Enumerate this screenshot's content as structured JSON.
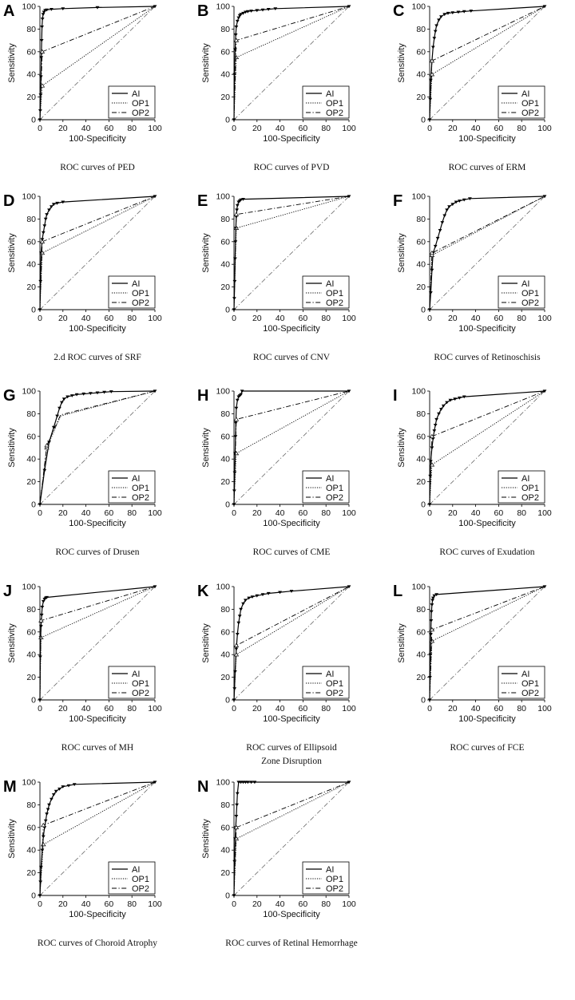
{
  "figure": {
    "x_axis_label": "100-Specificity",
    "y_axis_label": "Sensitivity",
    "tick_labels": [
      "0",
      "20",
      "40",
      "60",
      "80",
      "100"
    ],
    "legend_entries": [
      "AI",
      "OP1",
      "OP2"
    ]
  },
  "chart_data": [
    {
      "type": "line",
      "panel": "A",
      "caption": [
        "ROC curves of PED"
      ],
      "xlabel": "100-Specificity",
      "ylabel": "Sensitivity",
      "xlim": [
        0,
        100
      ],
      "ylim": [
        0,
        100
      ],
      "series": [
        {
          "name": "AI",
          "x": [
            0,
            0.3,
            0.6,
            0.9,
            1.2,
            1.5,
            1.8,
            2.2,
            2.8,
            3.5,
            4.5,
            6,
            10,
            20,
            50,
            100
          ],
          "y": [
            0,
            8,
            22,
            38,
            55,
            70,
            82,
            89,
            93,
            95,
            96.5,
            97,
            97.5,
            98,
            99,
            100
          ]
        },
        {
          "name": "OP1",
          "x": [
            0,
            2,
            100
          ],
          "y": [
            0,
            30,
            100
          ]
        },
        {
          "name": "OP2",
          "x": [
            0,
            2,
            100
          ],
          "y": [
            0,
            60,
            100
          ]
        }
      ]
    },
    {
      "type": "line",
      "panel": "B",
      "caption": [
        "ROC curves of PVD"
      ],
      "xlabel": "100-Specificity",
      "ylabel": "Sensitivity",
      "xlim": [
        0,
        100
      ],
      "ylim": [
        0,
        100
      ],
      "series": [
        {
          "name": "AI",
          "x": [
            0,
            0.5,
            1,
            1.5,
            2,
            3,
            4,
            5,
            6,
            8,
            10,
            12,
            15,
            20,
            25,
            30,
            36,
            100
          ],
          "y": [
            0,
            40,
            62,
            75,
            82,
            87,
            90,
            92,
            93,
            94,
            95,
            95.5,
            96,
            96.5,
            97,
            97.5,
            98,
            100
          ]
        },
        {
          "name": "OP1",
          "x": [
            0,
            2,
            100
          ],
          "y": [
            0,
            55,
            100
          ]
        },
        {
          "name": "OP2",
          "x": [
            0,
            2,
            100
          ],
          "y": [
            0,
            70,
            100
          ]
        }
      ]
    },
    {
      "type": "line",
      "panel": "C",
      "caption": [
        "ROC curves of ERM"
      ],
      "xlabel": "100-Specificity",
      "ylabel": "Sensitivity",
      "xlim": [
        0,
        100
      ],
      "ylim": [
        0,
        100
      ],
      "series": [
        {
          "name": "AI",
          "x": [
            0,
            0.5,
            1,
            2,
            3,
            4,
            5,
            6,
            8,
            10,
            13,
            16,
            20,
            25,
            30,
            36,
            100
          ],
          "y": [
            0,
            18,
            35,
            52,
            64,
            72,
            78,
            83,
            88,
            91,
            93,
            94,
            94.5,
            95,
            95.5,
            96,
            100
          ]
        },
        {
          "name": "OP1",
          "x": [
            0,
            2,
            100
          ],
          "y": [
            0,
            40,
            100
          ]
        },
        {
          "name": "OP2",
          "x": [
            0,
            2,
            100
          ],
          "y": [
            0,
            52,
            100
          ]
        }
      ]
    },
    {
      "type": "line",
      "panel": "D",
      "caption": [
        "2.d ROC curves of SRF"
      ],
      "xlabel": "100-Specificity",
      "ylabel": "Sensitivity",
      "xlim": [
        0,
        100
      ],
      "ylim": [
        0,
        100
      ],
      "series": [
        {
          "name": "AI",
          "x": [
            0,
            0.5,
            1,
            2,
            3,
            4,
            5,
            6,
            8,
            10,
            12,
            15,
            20,
            100
          ],
          "y": [
            0,
            25,
            50,
            62,
            68,
            74,
            80,
            84,
            88,
            91,
            93,
            94,
            95,
            100
          ]
        },
        {
          "name": "OP1",
          "x": [
            0,
            2,
            100
          ],
          "y": [
            0,
            50,
            100
          ]
        },
        {
          "name": "OP2",
          "x": [
            0,
            2,
            100
          ],
          "y": [
            0,
            60,
            100
          ]
        }
      ]
    },
    {
      "type": "line",
      "panel": "E",
      "caption": [
        "ROC curves of CNV"
      ],
      "xlabel": "100-Specificity",
      "ylabel": "Sensitivity",
      "xlim": [
        0,
        100
      ],
      "ylim": [
        0,
        100
      ],
      "series": [
        {
          "name": "AI",
          "x": [
            0,
            0.3,
            0.6,
            1,
            1.3,
            1.6,
            2,
            2.5,
            3,
            4,
            5,
            6,
            8,
            100
          ],
          "y": [
            0,
            10,
            25,
            45,
            60,
            72,
            82,
            88,
            92,
            95,
            96,
            97,
            97.5,
            100
          ]
        },
        {
          "name": "OP1",
          "x": [
            0,
            2,
            100
          ],
          "y": [
            0,
            72,
            100
          ]
        },
        {
          "name": "OP2",
          "x": [
            0,
            2,
            100
          ],
          "y": [
            0,
            84,
            100
          ]
        }
      ]
    },
    {
      "type": "line",
      "panel": "F",
      "caption": [
        "ROC curves of Retinoschisis"
      ],
      "xlabel": "100-Specificity",
      "ylabel": "Sensitivity",
      "xlim": [
        0,
        100
      ],
      "ylim": [
        0,
        100
      ],
      "series": [
        {
          "name": "AI",
          "x": [
            0,
            1,
            2,
            3,
            5,
            7,
            9,
            11,
            13,
            15,
            17,
            20,
            23,
            26,
            30,
            35,
            100
          ],
          "y": [
            0,
            15,
            35,
            50,
            56,
            63,
            70,
            77,
            83,
            88,
            91,
            93,
            95,
            96,
            97,
            98,
            100
          ]
        },
        {
          "name": "OP1",
          "x": [
            0,
            2,
            100
          ],
          "y": [
            0,
            48,
            100
          ]
        },
        {
          "name": "OP2",
          "x": [
            0,
            2,
            100
          ],
          "y": [
            0,
            50,
            100
          ]
        }
      ]
    },
    {
      "type": "line",
      "panel": "G",
      "caption": [
        "ROC curves of Drusen"
      ],
      "xlabel": "100-Specificity",
      "ylabel": "Sensitivity",
      "xlim": [
        0,
        100
      ],
      "ylim": [
        0,
        100
      ],
      "series": [
        {
          "name": "AI",
          "x": [
            0,
            4,
            8,
            12,
            15,
            17,
            19,
            21,
            24,
            28,
            32,
            38,
            44,
            50,
            56,
            62,
            100
          ],
          "y": [
            0,
            30,
            55,
            68,
            78,
            85,
            90,
            93,
            95,
            96,
            97,
            97.5,
            98,
            98.5,
            99,
            99.5,
            100
          ]
        },
        {
          "name": "OP1",
          "x": [
            0,
            6,
            18,
            100
          ],
          "y": [
            0,
            50,
            78,
            100
          ]
        },
        {
          "name": "OP2",
          "x": [
            0,
            6,
            18,
            100
          ],
          "y": [
            0,
            52,
            79,
            100
          ]
        }
      ]
    },
    {
      "type": "line",
      "panel": "H",
      "caption": [
        "ROC curves of CME"
      ],
      "xlabel": "100-Specificity",
      "ylabel": "Sensitivity",
      "xlim": [
        0,
        100
      ],
      "ylim": [
        0,
        100
      ],
      "series": [
        {
          "name": "AI",
          "x": [
            0,
            0.3,
            0.6,
            1,
            1.3,
            1.6,
            2,
            3,
            4,
            5,
            6,
            7,
            100
          ],
          "y": [
            0,
            12,
            28,
            45,
            60,
            72,
            85,
            92,
            95,
            96,
            97,
            100,
            100
          ]
        },
        {
          "name": "OP1",
          "x": [
            0,
            2,
            100
          ],
          "y": [
            0,
            45,
            100
          ]
        },
        {
          "name": "OP2",
          "x": [
            0,
            2,
            100
          ],
          "y": [
            0,
            75,
            100
          ]
        }
      ]
    },
    {
      "type": "line",
      "panel": "I",
      "caption": [
        "ROC curves of Exudation"
      ],
      "xlabel": "100-Specificity",
      "ylabel": "Sensitivity",
      "xlim": [
        0,
        100
      ],
      "ylim": [
        0,
        100
      ],
      "series": [
        {
          "name": "AI",
          "x": [
            0,
            0.5,
            1,
            2,
            3,
            4,
            5,
            6,
            8,
            10,
            12,
            15,
            18,
            22,
            26,
            30,
            100
          ],
          "y": [
            0,
            25,
            38,
            50,
            58,
            65,
            70,
            75,
            80,
            84,
            87,
            90,
            92,
            93,
            94,
            95,
            100
          ]
        },
        {
          "name": "OP1",
          "x": [
            0,
            2,
            100
          ],
          "y": [
            0,
            35,
            100
          ]
        },
        {
          "name": "OP2",
          "x": [
            0,
            2,
            100
          ],
          "y": [
            0,
            60,
            100
          ]
        }
      ]
    },
    {
      "type": "line",
      "panel": "J",
      "caption": [
        "ROC curves of MH"
      ],
      "xlabel": "100-Specificity",
      "ylabel": "Sensitivity",
      "xlim": [
        0,
        100
      ],
      "ylim": [
        0,
        100
      ],
      "series": [
        {
          "name": "AI",
          "x": [
            0,
            0.3,
            0.6,
            1,
            1.5,
            2,
            3,
            4,
            5,
            6,
            100
          ],
          "y": [
            0,
            38,
            55,
            65,
            75,
            82,
            87,
            89,
            90,
            90.5,
            100
          ]
        },
        {
          "name": "OP1",
          "x": [
            0,
            1,
            100
          ],
          "y": [
            0,
            55,
            100
          ]
        },
        {
          "name": "OP2",
          "x": [
            0,
            1,
            100
          ],
          "y": [
            0,
            70,
            100
          ]
        }
      ]
    },
    {
      "type": "line",
      "panel": "K",
      "caption": [
        "ROC curves of Ellipsoid",
        "Zone Disruption"
      ],
      "xlabel": "100-Specificity",
      "ylabel": "Sensitivity",
      "xlim": [
        0,
        100
      ],
      "ylim": [
        0,
        100
      ],
      "series": [
        {
          "name": "AI",
          "x": [
            0,
            0.5,
            1,
            2,
            3,
            4,
            5,
            6,
            8,
            10,
            13,
            16,
            20,
            25,
            30,
            40,
            50,
            100
          ],
          "y": [
            0,
            10,
            25,
            45,
            58,
            68,
            74,
            80,
            85,
            88,
            90,
            91,
            92,
            93,
            94,
            95,
            96,
            100
          ]
        },
        {
          "name": "OP1",
          "x": [
            0,
            2,
            100
          ],
          "y": [
            0,
            40,
            100
          ]
        },
        {
          "name": "OP2",
          "x": [
            0,
            2,
            100
          ],
          "y": [
            0,
            48,
            100
          ]
        }
      ]
    },
    {
      "type": "line",
      "panel": "L",
      "caption": [
        "ROC curves of FCE"
      ],
      "xlabel": "100-Specificity",
      "ylabel": "Sensitivity",
      "xlim": [
        0,
        100
      ],
      "ylim": [
        0,
        100
      ],
      "series": [
        {
          "name": "AI",
          "x": [
            0,
            0.3,
            0.6,
            1,
            1.3,
            1.6,
            2,
            2.5,
            3,
            4,
            6,
            100
          ],
          "y": [
            0,
            20,
            40,
            58,
            70,
            78,
            84,
            88,
            90,
            92,
            93,
            100
          ]
        },
        {
          "name": "OP1",
          "x": [
            0,
            2,
            100
          ],
          "y": [
            0,
            52,
            100
          ]
        },
        {
          "name": "OP2",
          "x": [
            0,
            2,
            100
          ],
          "y": [
            0,
            62,
            100
          ]
        }
      ]
    },
    {
      "type": "line",
      "panel": "M",
      "caption": [
        "ROC curves of Choroid Atrophy"
      ],
      "xlabel": "100-Specificity",
      "ylabel": "Sensitivity",
      "xlim": [
        0,
        100
      ],
      "ylim": [
        0,
        100
      ],
      "series": [
        {
          "name": "AI",
          "x": [
            0,
            0.5,
            1,
            2,
            3,
            4,
            5,
            6,
            7,
            8,
            10,
            12,
            14,
            17,
            20,
            25,
            30,
            100
          ],
          "y": [
            0,
            12,
            25,
            40,
            52,
            60,
            66,
            72,
            76,
            80,
            85,
            89,
            92,
            94,
            96,
            97,
            98,
            100
          ]
        },
        {
          "name": "OP1",
          "x": [
            0,
            3,
            100
          ],
          "y": [
            0,
            45,
            100
          ]
        },
        {
          "name": "OP2",
          "x": [
            0,
            3,
            100
          ],
          "y": [
            0,
            62,
            100
          ]
        }
      ]
    },
    {
      "type": "line",
      "panel": "N",
      "caption": [
        "ROC curves of Retinal Hemorrhage"
      ],
      "xlabel": "100-Specificity",
      "ylabel": "Sensitivity",
      "xlim": [
        0,
        100
      ],
      "ylim": [
        0,
        100
      ],
      "series": [
        {
          "name": "AI",
          "x": [
            0,
            0.5,
            1,
            1.5,
            2,
            2.5,
            3,
            4,
            6,
            8,
            10,
            12,
            15,
            18,
            100
          ],
          "y": [
            0,
            30,
            50,
            60,
            70,
            80,
            90,
            100,
            100,
            100,
            100,
            100,
            100,
            100,
            100
          ]
        },
        {
          "name": "OP1",
          "x": [
            0,
            2,
            100
          ],
          "y": [
            0,
            50,
            100
          ]
        },
        {
          "name": "OP2",
          "x": [
            0,
            2,
            100
          ],
          "y": [
            0,
            60,
            100
          ]
        }
      ]
    }
  ]
}
